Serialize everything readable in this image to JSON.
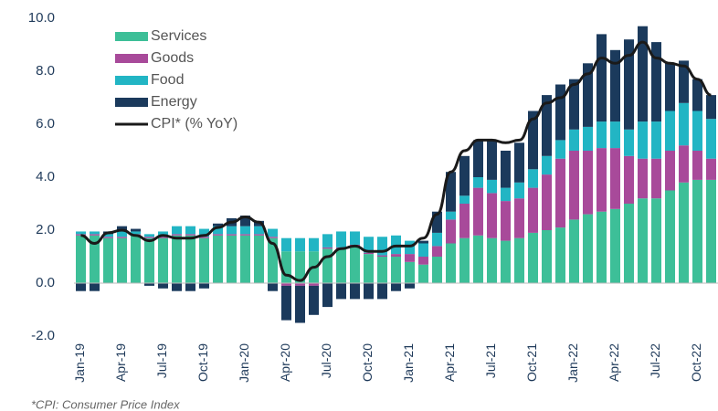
{
  "chart_data": {
    "type": "bar",
    "categories": [
      "Jan-19",
      null,
      null,
      "Apr-19",
      null,
      null,
      "Jul-19",
      null,
      null,
      "Oct-19",
      null,
      null,
      "Jan-20",
      null,
      null,
      "Apr-20",
      null,
      null,
      "Jul-20",
      null,
      null,
      "Oct-20",
      null,
      null,
      "Jan-21",
      null,
      null,
      "Apr-21",
      null,
      null,
      "Jul-21",
      null,
      null,
      "Oct-21",
      null,
      null,
      "Jan-22",
      null,
      null,
      "Apr-22",
      null,
      null,
      "Jul-22",
      null,
      null,
      "Oct-22",
      null
    ],
    "series": [
      {
        "name": "Services",
        "color": "#3dbf98",
        "values": [
          1.8,
          1.8,
          1.7,
          1.7,
          1.8,
          1.7,
          1.7,
          1.8,
          1.8,
          1.7,
          1.8,
          1.8,
          1.8,
          1.8,
          1.7,
          1.2,
          1.2,
          1.2,
          1.3,
          1.3,
          1.4,
          1.1,
          1.0,
          1.0,
          0.8,
          0.7,
          1.0,
          1.5,
          1.7,
          1.8,
          1.7,
          1.6,
          1.7,
          1.9,
          2.0,
          2.1,
          2.4,
          2.6,
          2.7,
          2.8,
          3.0,
          3.2,
          3.2,
          3.5,
          3.8,
          3.9,
          3.9
        ]
      },
      {
        "name": "Goods",
        "color": "#a84a9a",
        "values": [
          0.05,
          0.05,
          0.05,
          0.05,
          0.05,
          0.05,
          0.05,
          0.05,
          0.05,
          0.05,
          0.05,
          0.05,
          0.05,
          0.05,
          0.05,
          -0.1,
          -0.1,
          -0.1,
          0.05,
          0.05,
          0.05,
          0.05,
          0.05,
          0.1,
          0.3,
          0.3,
          0.4,
          0.9,
          1.3,
          1.8,
          1.7,
          1.5,
          1.5,
          1.7,
          2.1,
          2.6,
          2.6,
          2.4,
          2.4,
          2.3,
          1.8,
          1.5,
          1.5,
          1.5,
          1.4,
          1.1,
          0.8
        ]
      },
      {
        "name": "Food",
        "color": "#22b5c4",
        "values": [
          0.1,
          0.1,
          0.1,
          0.2,
          0.1,
          0.1,
          0.2,
          0.3,
          0.3,
          0.3,
          0.3,
          0.3,
          0.3,
          0.3,
          0.3,
          0.5,
          0.5,
          0.5,
          0.5,
          0.6,
          0.5,
          0.6,
          0.7,
          0.7,
          0.5,
          0.5,
          0.5,
          0.3,
          0.3,
          0.4,
          0.5,
          0.5,
          0.6,
          0.7,
          0.7,
          0.7,
          0.8,
          0.9,
          1.0,
          1.0,
          1.0,
          1.4,
          1.4,
          1.5,
          1.6,
          1.5,
          1.5
        ]
      },
      {
        "name": "Energy",
        "color": "#1b3a5c",
        "values": [
          -0.3,
          -0.3,
          0.1,
          0.2,
          0.1,
          -0.1,
          -0.2,
          -0.3,
          -0.3,
          -0.2,
          0.1,
          0.3,
          0.4,
          0.2,
          -0.3,
          -1.3,
          -1.4,
          -1.1,
          -0.9,
          -0.6,
          -0.6,
          -0.6,
          -0.6,
          -0.3,
          -0.2,
          0.1,
          0.8,
          1.5,
          1.5,
          1.4,
          1.5,
          1.4,
          1.5,
          2.2,
          2.3,
          2.1,
          1.9,
          2.4,
          3.3,
          2.7,
          3.4,
          3.6,
          3.0,
          1.8,
          1.6,
          1.2,
          0.9
        ]
      }
    ],
    "line": {
      "name": "CPI* (% YoY)",
      "color": "#1a1a1a",
      "values": [
        1.8,
        1.5,
        1.9,
        2.0,
        1.8,
        1.6,
        1.8,
        1.7,
        1.7,
        1.8,
        2.1,
        2.3,
        2.5,
        2.3,
        1.5,
        0.3,
        0.1,
        0.6,
        1.0,
        1.3,
        1.4,
        1.2,
        1.2,
        1.4,
        1.4,
        1.7,
        2.6,
        4.2,
        5.0,
        5.4,
        5.4,
        5.3,
        5.4,
        6.2,
        6.8,
        7.0,
        7.5,
        7.9,
        8.5,
        8.3,
        8.6,
        9.1,
        8.5,
        8.3,
        8.2,
        7.7,
        7.1
      ]
    },
    "ylim": [
      -2,
      10
    ],
    "yticks": [
      {
        "value": -2,
        "label": "-2.0"
      },
      {
        "value": 0,
        "label": "0.0"
      },
      {
        "value": 2,
        "label": "2.0"
      },
      {
        "value": 4,
        "label": "4.0"
      },
      {
        "value": 6,
        "label": "6.0"
      },
      {
        "value": 8,
        "label": "8.0"
      },
      {
        "value": 10,
        "label": "10.0"
      }
    ],
    "footnote": "*CPI: Consumer Price Index"
  }
}
